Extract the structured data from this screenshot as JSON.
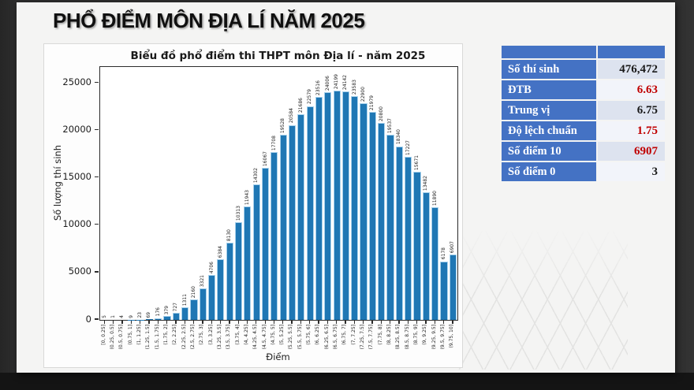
{
  "page": {
    "title": "PHỔ ĐIỂM MÔN ĐỊA LÍ NĂM 2025"
  },
  "chart_data": {
    "type": "bar",
    "title": "Biểu đồ phổ điểm thi THPT môn Địa lí - năm 2025",
    "xlabel": "Điểm",
    "ylabel": "Số lượng thí sinh",
    "ylim": [
      0,
      26700
    ],
    "yticks": [
      0,
      5000,
      10000,
      15000,
      20000,
      25000
    ],
    "grid": false,
    "legend": "none",
    "bar_color": "#1f77b4",
    "categories": [
      "[0, 0.25]",
      "(0.25, 0.5]",
      "(0.5, 0.75]",
      "(0.75, 1]",
      "(1, 1.25]",
      "(1.25, 1.5]",
      "(1.5, 1.75]",
      "(1.75, 2]",
      "(2, 2.25]",
      "(2.25, 2.5]",
      "(2.5, 2.75]",
      "(2.75, 3]",
      "(3, 3.25]",
      "(3.25, 3.5]",
      "(3.5, 3.75]",
      "(3.75, 4]",
      "(4, 4.25]",
      "(4.25, 4.5]",
      "(4.5, 4.75]",
      "(4.75, 5]",
      "(5, 5.25]",
      "(5.25, 5.5]",
      "(5.5, 5.75]",
      "(5.75, 6]",
      "(6, 6.25]",
      "(6.25, 6.5]",
      "(6.5, 6.75]",
      "(6.75, 7]",
      "(7, 7.25]",
      "(7.25, 7.5]",
      "(7.5, 7.75]",
      "(7.75, 8]",
      "(8, 8.25]",
      "(8.25, 8.5]",
      "(8.5, 8.75]",
      "(8.75, 9]",
      "(9, 9.25]",
      "(9.25, 9.5]",
      "(9.5, 9.75]",
      "(9.75, 10]"
    ],
    "values": [
      5,
      1,
      4,
      9,
      23,
      69,
      176,
      379,
      727,
      1311,
      2160,
      3321,
      4706,
      6384,
      8130,
      10313,
      11943,
      14302,
      16067,
      17708,
      19528,
      20584,
      21686,
      22579,
      23516,
      24006,
      24199,
      24142,
      23583,
      22900,
      21979,
      20800,
      19537,
      18340,
      17227,
      15671,
      13482,
      11890,
      6178,
      6907
    ]
  },
  "stats_table": {
    "header_color": "#4472c4",
    "rows": [
      {
        "label": "Số thí sinh",
        "value": "476,472",
        "value_color": "#1a1a1a"
      },
      {
        "label": "ĐTB",
        "value": "6.63",
        "value_color": "#c00000"
      },
      {
        "label": "Trung vị",
        "value": "6.75",
        "value_color": "#1a1a1a"
      },
      {
        "label": "Độ lệch chuẩn",
        "value": "1.75",
        "value_color": "#c00000"
      },
      {
        "label": "Số điểm 10",
        "value": "6907",
        "value_color": "#c00000"
      },
      {
        "label": "Số điểm 0",
        "value": "3",
        "value_color": "#1a1a1a"
      }
    ]
  }
}
